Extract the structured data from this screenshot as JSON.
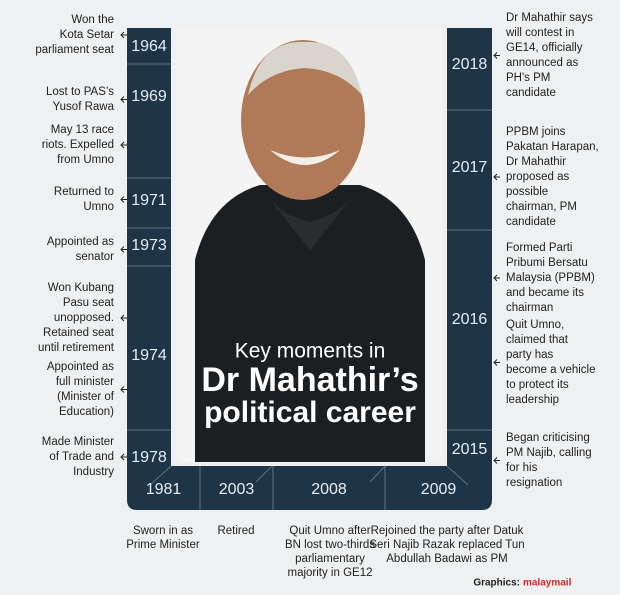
{
  "title": {
    "line1": "Key moments in",
    "line2": "Dr Mahathir’s",
    "line3": "political career"
  },
  "left_timeline": [
    {
      "year": "1964",
      "events": [
        [
          "Won the",
          "Kota Setar",
          "parliament seat"
        ]
      ]
    },
    {
      "year": "1969",
      "events": [
        [
          "Lost to PAS’s",
          "Yusof Rawa"
        ],
        [
          "May 13 race",
          "riots. Expelled",
          "from Umno"
        ]
      ]
    },
    {
      "year": "1971",
      "events": [
        [
          "Returned to",
          "Umno"
        ]
      ]
    },
    {
      "year": "1973",
      "events": [
        [
          "Appointed as",
          "senator"
        ]
      ]
    },
    {
      "year": "1974",
      "events": [
        [
          "Won Kubang",
          "Pasu seat",
          "unopposed.",
          "Retained seat",
          "until retirement"
        ],
        [
          "Appointed as",
          "full minister",
          "(Minister of",
          "Education)"
        ]
      ]
    },
    {
      "year": "1978",
      "events": [
        [
          "Made Minister",
          "of Trade and",
          "Industry"
        ]
      ]
    }
  ],
  "right_timeline": [
    {
      "year": "2018",
      "events": [
        [
          "Dr Mahathir says",
          "will contest in",
          "GE14, officially",
          "announced as",
          "PH's PM",
          "candidate"
        ]
      ]
    },
    {
      "year": "2017",
      "events": [
        [
          "PPBM joins",
          "Pakatan Harapan,",
          "Dr Mahathir",
          "proposed as",
          "possible",
          "chairman, PM",
          "candidate"
        ]
      ]
    },
    {
      "year": "2016",
      "events": [
        [
          "Formed Parti",
          "Pribumi Bersatu",
          "Malaysia (PPBM)",
          "and became its",
          "chairman"
        ],
        [
          "Quit Umno,",
          "claimed that",
          "party has",
          "become a vehicle",
          "to protect its",
          "leadership"
        ]
      ]
    },
    {
      "year": "2015",
      "events": [
        [
          "Began criticising",
          "PM Najib, calling",
          "for his",
          "resignation"
        ]
      ]
    }
  ],
  "bottom_timeline": [
    {
      "year": "1981",
      "event": [
        "Sworn in as",
        "Prime Minister"
      ]
    },
    {
      "year": "2003",
      "event": [
        "Retired"
      ]
    },
    {
      "year": "2008",
      "event": [
        "Quit Umno after",
        "BN lost two-thirds",
        "parliamentary",
        "majority in GE12"
      ]
    },
    {
      "year": "2009",
      "event": [
        "Rejoined the party after Datuk",
        "Seri Najib Razak replaced Tun",
        "Abdullah Badawi as PM"
      ]
    }
  ],
  "credit": {
    "label": "Graphics:",
    "brand": "malaymail"
  }
}
